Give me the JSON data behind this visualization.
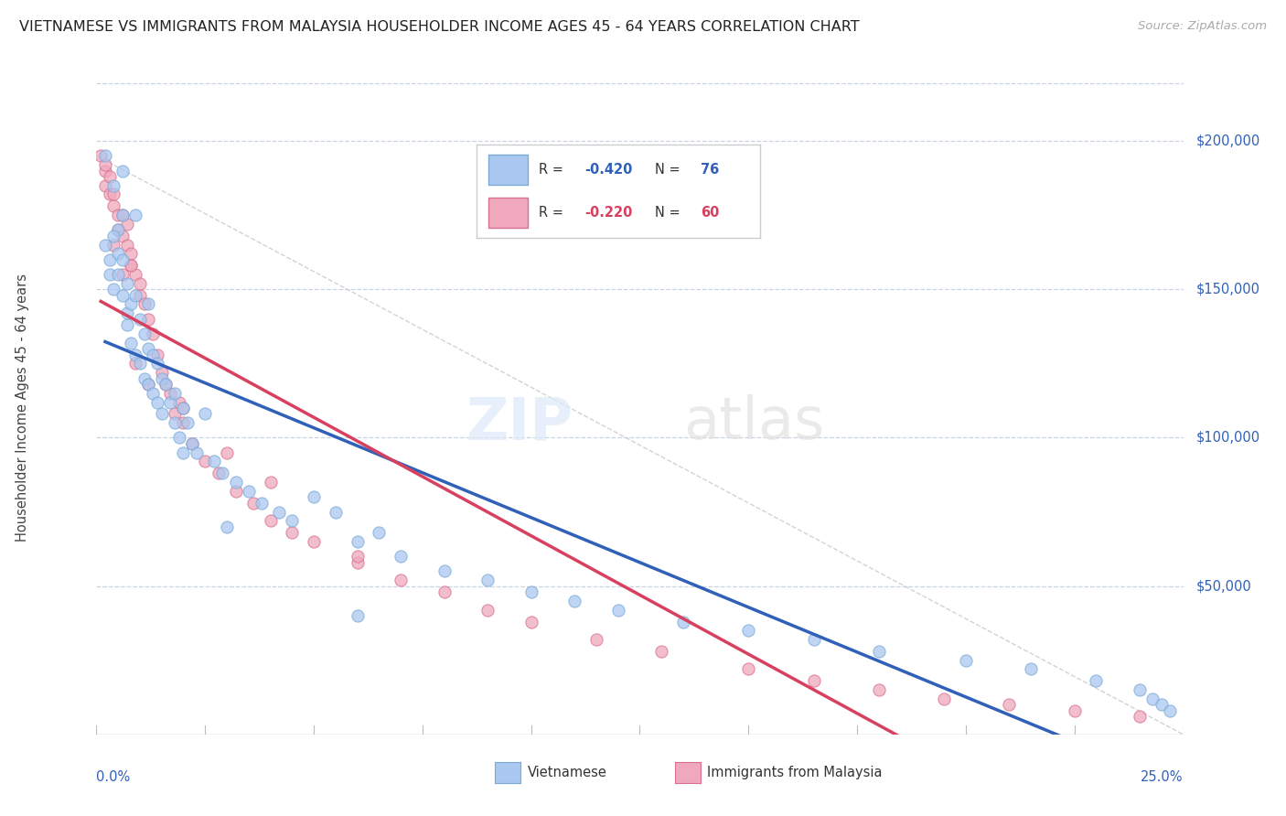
{
  "title": "VIETNAMESE VS IMMIGRANTS FROM MALAYSIA HOUSEHOLDER INCOME AGES 45 - 64 YEARS CORRELATION CHART",
  "source_text": "Source: ZipAtlas.com",
  "ylabel": "Householder Income Ages 45 - 64 years",
  "xmin": 0.0,
  "xmax": 0.25,
  "ymin": 0,
  "ymax": 220000,
  "yticks": [
    50000,
    100000,
    150000,
    200000
  ],
  "ytick_labels": [
    "$50,000",
    "$100,000",
    "$150,000",
    "$200,000"
  ],
  "background_color": "#ffffff",
  "grid_color": "#c8d4e4",
  "title_color": "#222222",
  "source_color": "#aaaaaa",
  "viet_dot_fill": "#aac8f0",
  "viet_dot_edge": "#7aaad8",
  "viet_line_color": "#3060b8",
  "malay_dot_fill": "#f0a8bc",
  "malay_dot_edge": "#d87090",
  "malay_line_color": "#d84060",
  "legend_R1": "-0.420",
  "legend_N1": "76",
  "legend_R2": "-0.220",
  "legend_N2": "60",
  "legend_label1": "Vietnamese",
  "legend_label2": "Immigrants from Malaysia",
  "viet_x": [
    0.002,
    0.004,
    0.002,
    0.006,
    0.003,
    0.005,
    0.003,
    0.004,
    0.004,
    0.005,
    0.005,
    0.006,
    0.006,
    0.007,
    0.007,
    0.007,
    0.008,
    0.008,
    0.009,
    0.009,
    0.01,
    0.01,
    0.011,
    0.011,
    0.012,
    0.012,
    0.013,
    0.013,
    0.014,
    0.014,
    0.015,
    0.015,
    0.016,
    0.017,
    0.018,
    0.018,
    0.019,
    0.02,
    0.021,
    0.022,
    0.023,
    0.025,
    0.027,
    0.029,
    0.032,
    0.035,
    0.038,
    0.042,
    0.045,
    0.05,
    0.055,
    0.06,
    0.065,
    0.07,
    0.08,
    0.09,
    0.1,
    0.11,
    0.12,
    0.135,
    0.15,
    0.165,
    0.18,
    0.2,
    0.215,
    0.23,
    0.24,
    0.243,
    0.245,
    0.247,
    0.006,
    0.009,
    0.012,
    0.02,
    0.03,
    0.06
  ],
  "viet_y": [
    195000,
    185000,
    165000,
    175000,
    160000,
    170000,
    155000,
    150000,
    168000,
    162000,
    155000,
    148000,
    160000,
    142000,
    152000,
    138000,
    145000,
    132000,
    148000,
    128000,
    140000,
    125000,
    135000,
    120000,
    130000,
    118000,
    128000,
    115000,
    125000,
    112000,
    120000,
    108000,
    118000,
    112000,
    105000,
    115000,
    100000,
    110000,
    105000,
    98000,
    95000,
    108000,
    92000,
    88000,
    85000,
    82000,
    78000,
    75000,
    72000,
    80000,
    75000,
    65000,
    68000,
    60000,
    55000,
    52000,
    48000,
    45000,
    42000,
    38000,
    35000,
    32000,
    28000,
    25000,
    22000,
    18000,
    15000,
    12000,
    10000,
    8000,
    190000,
    175000,
    145000,
    95000,
    70000,
    40000
  ],
  "malay_x": [
    0.001,
    0.002,
    0.002,
    0.003,
    0.003,
    0.004,
    0.004,
    0.005,
    0.005,
    0.006,
    0.006,
    0.007,
    0.007,
    0.008,
    0.008,
    0.009,
    0.01,
    0.01,
    0.011,
    0.012,
    0.013,
    0.014,
    0.015,
    0.016,
    0.017,
    0.018,
    0.019,
    0.02,
    0.022,
    0.025,
    0.028,
    0.032,
    0.036,
    0.04,
    0.045,
    0.05,
    0.06,
    0.07,
    0.08,
    0.09,
    0.1,
    0.115,
    0.13,
    0.15,
    0.165,
    0.18,
    0.195,
    0.21,
    0.225,
    0.24,
    0.004,
    0.006,
    0.009,
    0.012,
    0.02,
    0.03,
    0.04,
    0.06,
    0.002,
    0.008
  ],
  "malay_y": [
    195000,
    190000,
    185000,
    188000,
    182000,
    178000,
    182000,
    175000,
    170000,
    168000,
    175000,
    165000,
    172000,
    162000,
    158000,
    155000,
    148000,
    152000,
    145000,
    140000,
    135000,
    128000,
    122000,
    118000,
    115000,
    108000,
    112000,
    105000,
    98000,
    92000,
    88000,
    82000,
    78000,
    72000,
    68000,
    65000,
    58000,
    52000,
    48000,
    42000,
    38000,
    32000,
    28000,
    22000,
    18000,
    15000,
    12000,
    10000,
    8000,
    6000,
    165000,
    155000,
    125000,
    118000,
    110000,
    95000,
    85000,
    60000,
    192000,
    158000
  ]
}
